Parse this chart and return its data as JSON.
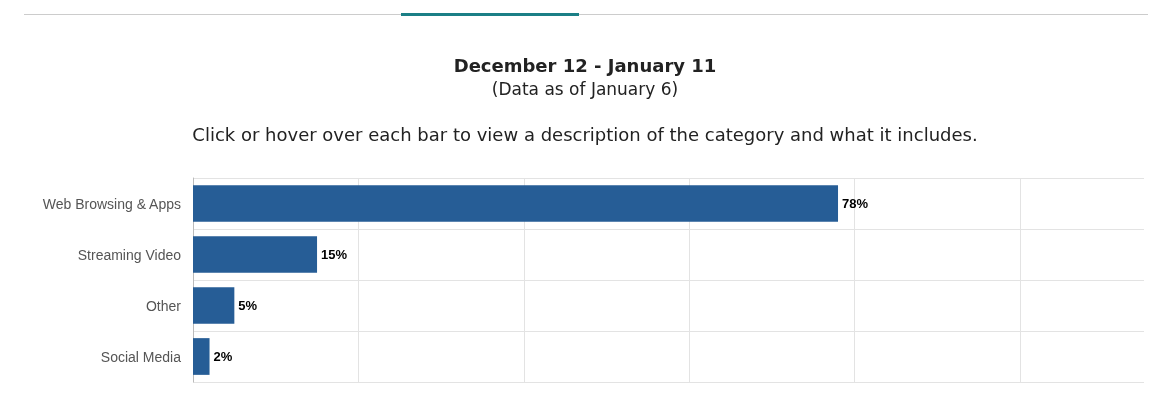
{
  "chart_data": {
    "type": "bar",
    "orientation": "horizontal",
    "title": "December 12 - January 11",
    "subtitle": "(Data as of January 6)",
    "annotations": [
      "Click or hover over each bar to view a description of the category and what it includes."
    ],
    "categories": [
      "Web Browsing & Apps",
      "Streaming Video",
      "Other",
      "Social Media"
    ],
    "values": [
      78,
      15,
      5,
      2
    ],
    "value_labels": [
      "78%",
      "15%",
      "5%",
      "2%"
    ],
    "color": "#265d96",
    "xlim": [
      0,
      115
    ],
    "xticks": [
      {
        "value": 0,
        "label": null
      },
      {
        "value": 20,
        "label": null
      },
      {
        "value": 40,
        "label": null
      },
      {
        "value": 60,
        "label": null
      },
      {
        "value": 80,
        "label": null
      },
      {
        "value": 100,
        "label": null
      }
    ],
    "grid": true,
    "tick_labels": "y"
  }
}
